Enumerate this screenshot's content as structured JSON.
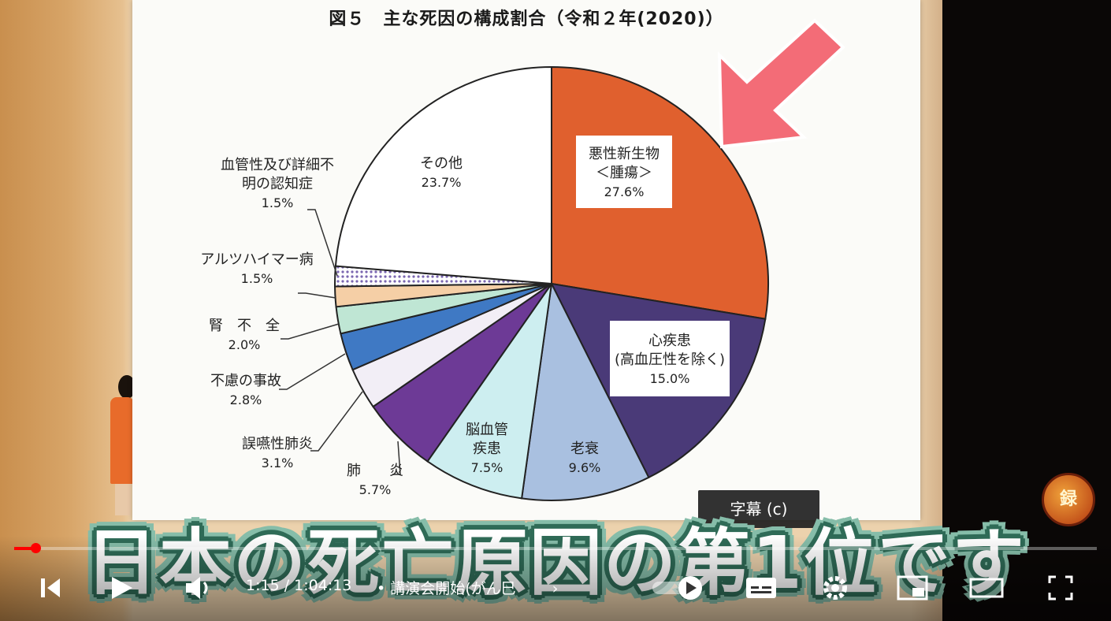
{
  "video": {
    "subtitle": "日本の死亡原因の第1位です",
    "tooltip": "字幕 (c)",
    "time_current": "1:15",
    "time_total": "1:04:13",
    "time_display": "1:15 / 1:04:13",
    "chapter_title": "講演会開始(がん巳",
    "chapter_separator": "•",
    "progress": 0.02,
    "channel_badge": "録",
    "accent_color": "#ff0000"
  },
  "controls": {
    "prev_icon": "skip-previous-icon",
    "play_icon": "play-icon",
    "volume_icon": "volume-icon",
    "autoplay_icon": "autoplay-toggle-icon",
    "captions_icon": "captions-icon",
    "settings_icon": "gear-icon",
    "miniplayer_icon": "miniplayer-icon",
    "theater_icon": "theater-icon",
    "fullscreen_icon": "fullscreen-icon"
  },
  "chart_data": {
    "type": "pie",
    "title": "図５　主な死因の構成割合（令和２年(2020)）",
    "slices": [
      {
        "label": "悪性新生物＜腫瘍＞",
        "label_lines": [
          "悪性新生物",
          "＜腫瘍＞"
        ],
        "value": 27.6,
        "value_label": "27.6%",
        "color": "#e0602e",
        "pattern": "solid"
      },
      {
        "label": "心疾患(高血圧性を除く)",
        "label_lines": [
          "心疾患",
          "(高血圧性を除く)"
        ],
        "value": 15.0,
        "value_label": "15.0%",
        "color": "#4a3a78",
        "pattern": "solid"
      },
      {
        "label": "老衰",
        "label_lines": [
          "老衰"
        ],
        "value": 9.6,
        "value_label": "9.6%",
        "color": "#a9c0e0",
        "pattern": "solid"
      },
      {
        "label": "脳血管疾患",
        "label_lines": [
          "脳血管",
          "疾患"
        ],
        "value": 7.5,
        "value_label": "7.5%",
        "color": "#cdeef0",
        "pattern": "solid"
      },
      {
        "label": "肺炎",
        "label_lines": [
          "肺　　炎"
        ],
        "value": 5.7,
        "value_label": "5.7%",
        "color": "#6d3a96",
        "pattern": "solid"
      },
      {
        "label": "誤嚥性肺炎",
        "label_lines": [
          "誤嚥性肺炎"
        ],
        "value": 3.1,
        "value_label": "3.1%",
        "color": "#f2eef6",
        "pattern": "solid"
      },
      {
        "label": "不慮の事故",
        "label_lines": [
          "不慮の事故"
        ],
        "value": 2.8,
        "value_label": "2.8%",
        "color": "#3f79c4",
        "pattern": "solid"
      },
      {
        "label": "腎不全",
        "label_lines": [
          "腎　不　全"
        ],
        "value": 2.0,
        "value_label": "2.0%",
        "color": "#bfe6d4",
        "pattern": "solid"
      },
      {
        "label": "アルツハイマー病",
        "label_lines": [
          "アルツハイマー病"
        ],
        "value": 1.5,
        "value_label": "1.5%",
        "color": "#f5cfa6",
        "pattern": "solid"
      },
      {
        "label": "血管性及び詳細不明の認知症",
        "label_lines": [
          "血管性及び詳細不",
          "明の認知症"
        ],
        "value": 1.5,
        "value_label": "1.5%",
        "color": "#7a66b0",
        "pattern": "dots"
      },
      {
        "label": "その他",
        "label_lines": [
          "その他"
        ],
        "value": 23.7,
        "value_label": "23.7%",
        "color": "#ffffff",
        "pattern": "solid"
      }
    ],
    "start_angle": "12 o'clock",
    "direction": "clockwise",
    "highlight_arrow_color": "#f36c77"
  }
}
